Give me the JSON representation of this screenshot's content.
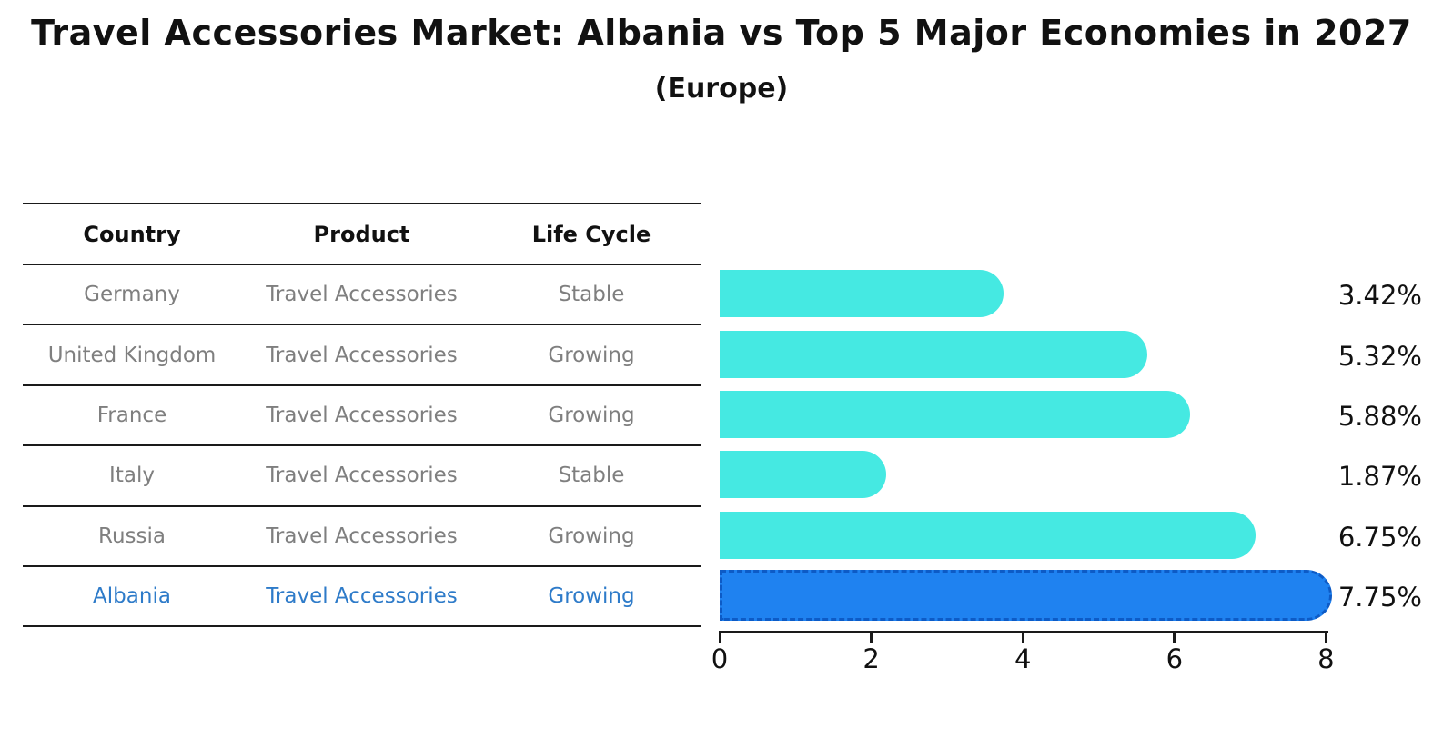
{
  "title": "Travel Accessories Market: Albania vs Top 5 Major Economies in 2027",
  "subtitle": "(Europe)",
  "table": {
    "columns": [
      "Country",
      "Product",
      "Life Cycle"
    ],
    "rows": [
      {
        "country": "Germany",
        "product": "Travel Accessories",
        "life_cycle": "Stable",
        "value_label": "3.42%",
        "highlight": false
      },
      {
        "country": "United Kingdom",
        "product": "Travel Accessories",
        "life_cycle": "Growing",
        "value_label": "5.32%",
        "highlight": false
      },
      {
        "country": "France",
        "product": "Travel Accessories",
        "life_cycle": "Growing",
        "value_label": "5.88%",
        "highlight": false
      },
      {
        "country": "Italy",
        "product": "Travel Accessories",
        "life_cycle": "Stable",
        "value_label": "1.87%",
        "highlight": false
      },
      {
        "country": "Russia",
        "product": "Travel Accessories",
        "life_cycle": "Growing",
        "value_label": "6.75%",
        "highlight": false
      },
      {
        "country": "Albania",
        "product": "Travel Accessories",
        "life_cycle": "Growing",
        "value_label": "7.75%",
        "highlight": true
      }
    ]
  },
  "chart_data": {
    "type": "bar",
    "orientation": "horizontal",
    "categories": [
      "Germany",
      "United Kingdom",
      "France",
      "Italy",
      "Russia",
      "Albania"
    ],
    "values": [
      3.42,
      5.32,
      5.88,
      1.87,
      6.75,
      7.75
    ],
    "value_labels": [
      "3.42%",
      "5.32%",
      "5.88%",
      "1.87%",
      "6.75%",
      "7.75%"
    ],
    "title": "Travel Accessories Market: Albania vs Top 5 Major Economies in 2027 (Europe)",
    "xlabel": "",
    "ylabel": "",
    "xlim": [
      0,
      8
    ],
    "xticks": [
      0,
      2,
      4,
      6,
      8
    ],
    "grid": false,
    "legend": false,
    "highlight_index": 5
  },
  "colors": {
    "bar": "#45E9E2",
    "highlight_bar": "#1F82F0",
    "highlight_border": "#0D5BC6",
    "highlight_text": "#2E7BC9",
    "table_text": "#7f7f7f",
    "header_text": "#111111",
    "line": "#1a1a1a",
    "label_text": "#111111",
    "background": "#ffffff"
  }
}
